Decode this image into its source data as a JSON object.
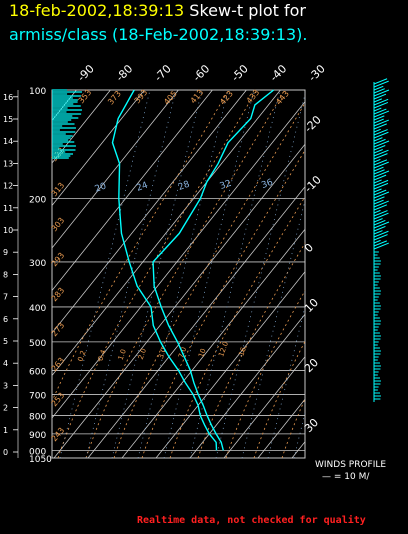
{
  "header": {
    "line1_date": "18-feb-2002,18:39:13",
    "line1_text": "Skew-t plot for",
    "line2_text": "armiss/class (18-Feb-2002,18:39:13)."
  },
  "colors": {
    "background": "#000000",
    "grid": "#c8c8c8",
    "dry_adiabat": "#e89a50",
    "mixing_ratio": "#8ab4e0",
    "profile": "#00ffff",
    "header_date": "#ffff00",
    "header_title": "#00ffff",
    "warning": "#ff2020"
  },
  "chart_data": {
    "type": "line",
    "title": "Skew-t plot",
    "pressure_levels_hpa": [
      100,
      200,
      300,
      400,
      500,
      600,
      700,
      800,
      900,
      1000,
      1050
    ],
    "pressure_labels": [
      "100",
      "200",
      "300",
      "400",
      "500",
      "600",
      "700",
      "800",
      "900",
      "000",
      "1050"
    ],
    "height_km_ticks": [
      "0",
      "1",
      "2",
      "3",
      "4",
      "5",
      "6",
      "7",
      "8",
      "9",
      "10",
      "11",
      "12",
      "13",
      "14",
      "15",
      "16"
    ],
    "top_temperature_ticks_c": [
      -90,
      -80,
      -70,
      -60,
      -50,
      -40,
      -30
    ],
    "right_temperature_ticks": [
      "-20",
      "-10",
      "0",
      "10",
      "20",
      "30"
    ],
    "mixing_ratio_labels": [
      "20",
      "24",
      "28",
      "32",
      "36"
    ],
    "dry_adiabat_labels_top": [
      "353",
      "373",
      "393",
      "405",
      "413",
      "423",
      "433",
      "443"
    ],
    "dry_adiabat_labels_left": [
      "323",
      "313",
      "303",
      "293",
      "283",
      "273",
      "263",
      "253",
      "243"
    ],
    "lower_mixing_labels": [
      "0.2",
      "0.4",
      "1.0",
      "2.0",
      "3.0",
      "7.0",
      "10",
      "12.0",
      "16"
    ],
    "series": [
      {
        "name": "temperature",
        "points": [
          [
            1000,
            8
          ],
          [
            950,
            5.5
          ],
          [
            900,
            2
          ],
          [
            850,
            -1.5
          ],
          [
            800,
            -5
          ],
          [
            750,
            -8.5
          ],
          [
            700,
            -12.5
          ],
          [
            650,
            -16.5
          ],
          [
            600,
            -20.5
          ],
          [
            550,
            -25.5
          ],
          [
            500,
            -31
          ],
          [
            450,
            -37.5
          ],
          [
            400,
            -44
          ],
          [
            350,
            -51
          ],
          [
            300,
            -57
          ],
          [
            250,
            -56
          ],
          [
            200,
            -58
          ],
          [
            180,
            -60
          ],
          [
            160,
            -61
          ],
          [
            140,
            -63
          ],
          [
            120,
            -62
          ],
          [
            110,
            -64
          ],
          [
            100,
            -62
          ]
        ]
      },
      {
        "name": "dewpoint",
        "points": [
          [
            1000,
            6
          ],
          [
            950,
            4
          ],
          [
            900,
            0
          ],
          [
            850,
            -3.5
          ],
          [
            800,
            -7
          ],
          [
            750,
            -10
          ],
          [
            700,
            -14
          ],
          [
            650,
            -19
          ],
          [
            600,
            -24
          ],
          [
            550,
            -30
          ],
          [
            500,
            -36
          ],
          [
            450,
            -42
          ],
          [
            400,
            -47
          ],
          [
            350,
            -56
          ],
          [
            300,
            -64
          ],
          [
            250,
            -73
          ],
          [
            200,
            -82
          ],
          [
            160,
            -90
          ],
          [
            140,
            -97
          ],
          [
            120,
            -101
          ],
          [
            100,
            -103
          ]
        ]
      }
    ],
    "winds_profile": {
      "title": "WINDS PROFILE",
      "scale": "— = 10 M/"
    }
  },
  "footer": {
    "quality_note": "Realtime data, not checked for quality"
  }
}
